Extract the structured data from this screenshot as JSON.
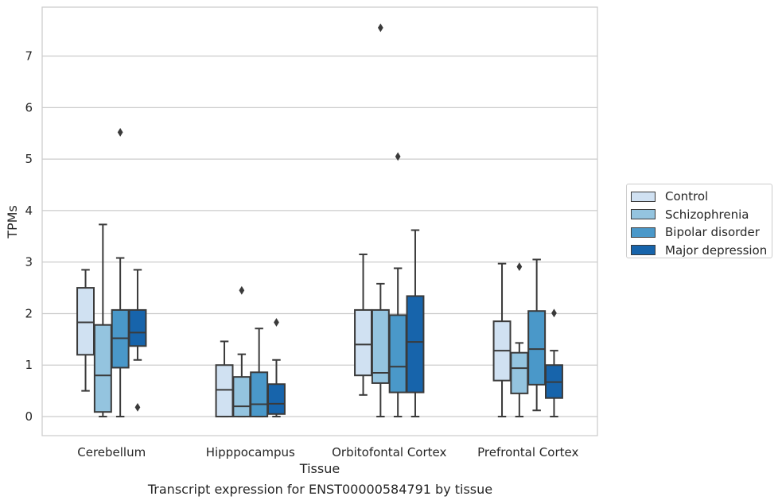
{
  "chart_data": {
    "type": "boxplot",
    "caption": "Transcript expression for ENST00000584791 by tissue",
    "xlabel": "Tissue",
    "ylabel": "TPMs",
    "ylim": [
      -0.37,
      7.95
    ],
    "yticks": [
      0,
      1,
      2,
      3,
      4,
      5,
      6,
      7
    ],
    "grid": true,
    "legend_placement": "right",
    "categories": [
      "Cerebellum",
      "Hipppocampus",
      "Orbitofontal Cortex",
      "Prefrontal Cortex"
    ],
    "series": [
      {
        "name": "Control",
        "color": "#d0e1f2",
        "boxes": [
          {
            "whislo": 0.5,
            "q1": 1.2,
            "med": 1.83,
            "q3": 2.5,
            "whishi": 2.85,
            "fliers": []
          },
          {
            "whislo": 0.0,
            "q1": 0.0,
            "med": 0.52,
            "q3": 1.0,
            "whishi": 1.46,
            "fliers": []
          },
          {
            "whislo": 0.42,
            "q1": 0.8,
            "med": 1.4,
            "q3": 2.07,
            "whishi": 3.15,
            "fliers": []
          },
          {
            "whislo": 0.0,
            "q1": 0.7,
            "med": 1.28,
            "q3": 1.85,
            "whishi": 2.97,
            "fliers": []
          }
        ]
      },
      {
        "name": "Schizophrenia",
        "color": "#94c4df",
        "boxes": [
          {
            "whislo": 0.0,
            "q1": 0.09,
            "med": 0.8,
            "q3": 1.78,
            "whishi": 3.73,
            "fliers": []
          },
          {
            "whislo": 0.0,
            "q1": 0.0,
            "med": 0.2,
            "q3": 0.77,
            "whishi": 1.21,
            "fliers": [
              2.45
            ]
          },
          {
            "whislo": 0.0,
            "q1": 0.65,
            "med": 0.85,
            "q3": 2.07,
            "whishi": 2.58,
            "fliers": [
              7.55
            ]
          },
          {
            "whislo": 0.0,
            "q1": 0.45,
            "med": 0.94,
            "q3": 1.24,
            "whishi": 1.43,
            "fliers": [
              2.91
            ]
          }
        ]
      },
      {
        "name": "Bipolar disorder",
        "color": "#4a98c9",
        "boxes": [
          {
            "whislo": 0.0,
            "q1": 0.95,
            "med": 1.52,
            "q3": 2.07,
            "whishi": 3.08,
            "fliers": [
              5.52
            ]
          },
          {
            "whislo": 0.0,
            "q1": 0.0,
            "med": 0.24,
            "q3": 0.86,
            "whishi": 1.71,
            "fliers": []
          },
          {
            "whislo": 0.0,
            "q1": 0.47,
            "med": 0.97,
            "q3": 1.97,
            "whishi": 2.88,
            "fliers": [
              5.05
            ]
          },
          {
            "whislo": 0.12,
            "q1": 0.62,
            "med": 1.31,
            "q3": 2.05,
            "whishi": 3.05,
            "fliers": []
          }
        ]
      },
      {
        "name": "Major depression",
        "color": "#1764ab",
        "boxes": [
          {
            "whislo": 1.1,
            "q1": 1.37,
            "med": 1.63,
            "q3": 2.07,
            "whishi": 2.85,
            "fliers": [
              0.18
            ]
          },
          {
            "whislo": 0.0,
            "q1": 0.05,
            "med": 0.25,
            "q3": 0.63,
            "whishi": 1.1,
            "fliers": [
              1.83
            ]
          },
          {
            "whislo": 0.0,
            "q1": 0.47,
            "med": 1.45,
            "q3": 2.34,
            "whishi": 3.62,
            "fliers": []
          },
          {
            "whislo": 0.0,
            "q1": 0.36,
            "med": 0.67,
            "q3": 1.0,
            "whishi": 1.28,
            "fliers": [
              2.01
            ]
          }
        ]
      }
    ]
  }
}
